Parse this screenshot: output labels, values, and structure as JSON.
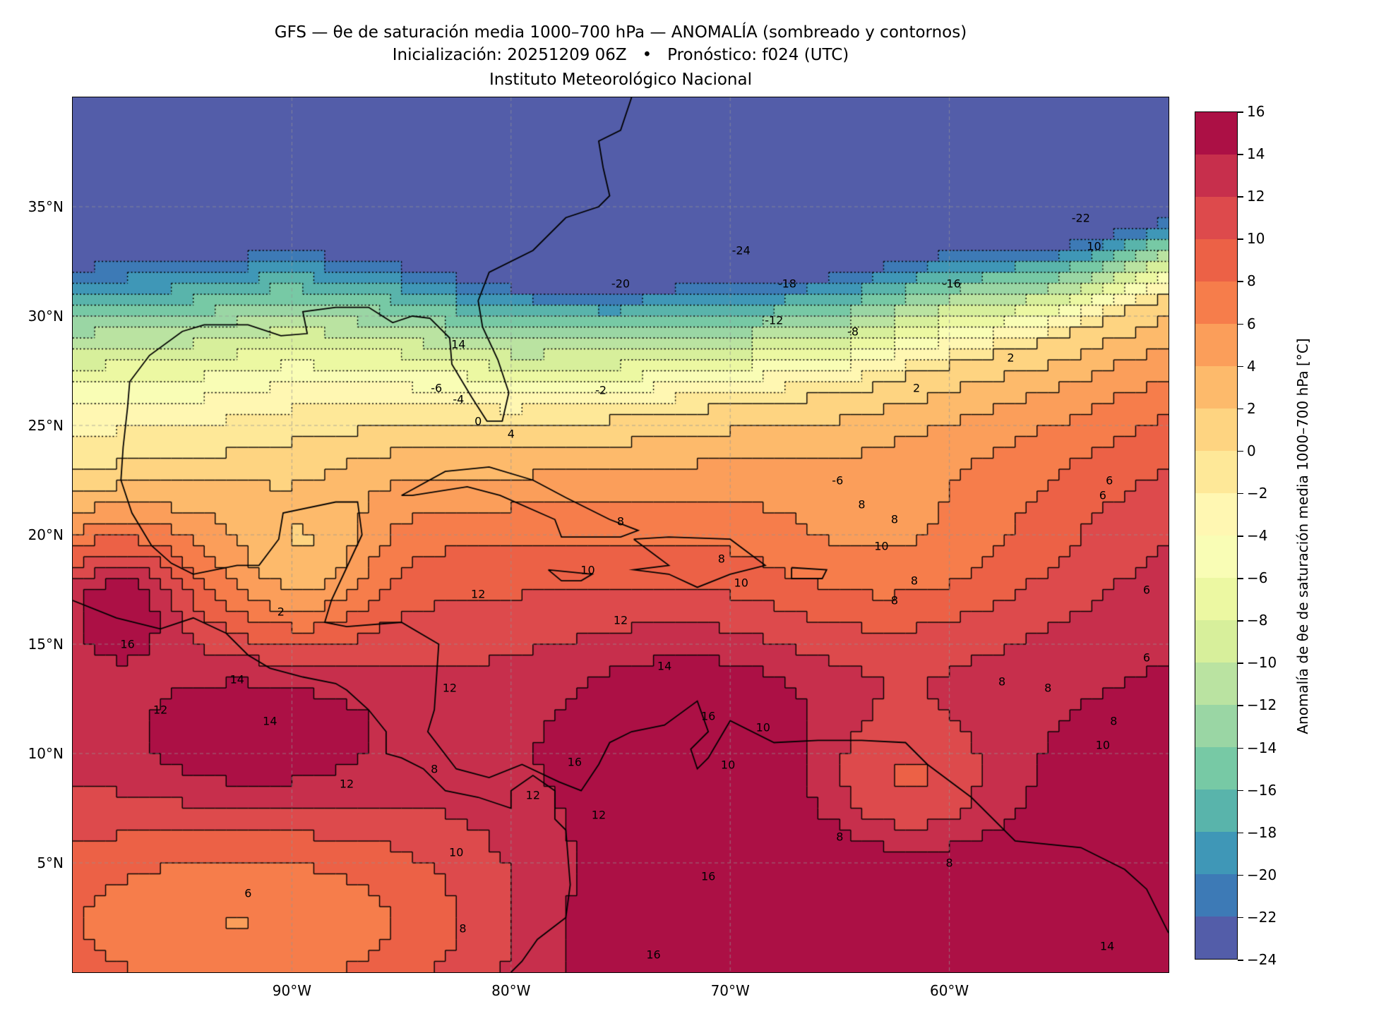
{
  "header": {
    "line1": "GFS — θe de saturación media 1000–700 hPa — ANOMALÍA (sombreado y contornos)",
    "line2": "Inicialización: 20251209 06Z   •   Pronóstico: f024 (UTC)",
    "line3": "Instituto Meteorológico Nacional"
  },
  "map": {
    "extent": {
      "lon_min": -100,
      "lon_max": -50,
      "lat_min": 0,
      "lat_max": 40
    },
    "lon_ticks": [
      {
        "value": -90,
        "label": "90°W"
      },
      {
        "value": -80,
        "label": "80°W"
      },
      {
        "value": -70,
        "label": "70°W"
      },
      {
        "value": -60,
        "label": "60°W"
      }
    ],
    "lat_ticks": [
      {
        "value": 35,
        "label": "35°N"
      },
      {
        "value": 30,
        "label": "30°N"
      },
      {
        "value": 25,
        "label": "25°N"
      },
      {
        "value": 20,
        "label": "20°N"
      },
      {
        "value": 15,
        "label": "15°N"
      },
      {
        "value": 10,
        "label": "10°N"
      },
      {
        "value": 5,
        "label": "5°N"
      }
    ],
    "contour_labels": [
      {
        "text": "-24",
        "lon": -69.5,
        "lat": 33.0
      },
      {
        "text": "-22",
        "lon": -54,
        "lat": 34.5
      },
      {
        "text": "10",
        "lon": -53.4,
        "lat": 33.2
      },
      {
        "text": "-20",
        "lon": -75,
        "lat": 31.5
      },
      {
        "text": "-18",
        "lon": -67.4,
        "lat": 31.5
      },
      {
        "text": "-16",
        "lon": -59.9,
        "lat": 31.5
      },
      {
        "text": "-12",
        "lon": -68,
        "lat": 29.8
      },
      {
        "text": "-8",
        "lon": -64.4,
        "lat": 29.3
      },
      {
        "text": "14",
        "lon": -82.4,
        "lat": 28.7
      },
      {
        "text": "2",
        "lon": -57.2,
        "lat": 28.1
      },
      {
        "text": "-6",
        "lon": -83.4,
        "lat": 26.7
      },
      {
        "text": "-4",
        "lon": -82.4,
        "lat": 26.2
      },
      {
        "text": "-2",
        "lon": -75.9,
        "lat": 26.6
      },
      {
        "text": "2",
        "lon": -61.5,
        "lat": 26.7
      },
      {
        "text": "0",
        "lon": -81.5,
        "lat": 25.2
      },
      {
        "text": "4",
        "lon": -80,
        "lat": 24.6
      },
      {
        "text": "-6",
        "lon": -65.1,
        "lat": 22.5
      },
      {
        "text": "6",
        "lon": -52.7,
        "lat": 22.5
      },
      {
        "text": "6",
        "lon": -53,
        "lat": 21.8
      },
      {
        "text": "8",
        "lon": -64,
        "lat": 21.4
      },
      {
        "text": "8",
        "lon": -62.5,
        "lat": 20.7
      },
      {
        "text": "8",
        "lon": -75,
        "lat": 20.6
      },
      {
        "text": "10",
        "lon": -63.1,
        "lat": 19.5
      },
      {
        "text": "8",
        "lon": -70.4,
        "lat": 18.9
      },
      {
        "text": "10",
        "lon": -76.5,
        "lat": 18.4
      },
      {
        "text": "12",
        "lon": -81.5,
        "lat": 17.3
      },
      {
        "text": "10",
        "lon": -69.5,
        "lat": 17.8
      },
      {
        "text": "8",
        "lon": -61.6,
        "lat": 17.9
      },
      {
        "text": "8",
        "lon": -62.5,
        "lat": 17.0
      },
      {
        "text": "6",
        "lon": -51,
        "lat": 17.5
      },
      {
        "text": "2",
        "lon": -90.5,
        "lat": 16.5
      },
      {
        "text": "12",
        "lon": -75,
        "lat": 16.1
      },
      {
        "text": "16",
        "lon": -97.5,
        "lat": 15.0
      },
      {
        "text": "14",
        "lon": -73,
        "lat": 14.0
      },
      {
        "text": "6",
        "lon": -51,
        "lat": 14.4
      },
      {
        "text": "8",
        "lon": -57.6,
        "lat": 13.3
      },
      {
        "text": "8",
        "lon": -55.5,
        "lat": 13.0
      },
      {
        "text": "12",
        "lon": -82.8,
        "lat": 13.0
      },
      {
        "text": "14",
        "lon": -92.5,
        "lat": 13.4
      },
      {
        "text": "12",
        "lon": -96,
        "lat": 12.0
      },
      {
        "text": "14",
        "lon": -91,
        "lat": 11.5
      },
      {
        "text": "16",
        "lon": -71,
        "lat": 11.7
      },
      {
        "text": "10",
        "lon": -68.5,
        "lat": 11.2
      },
      {
        "text": "8",
        "lon": -52.5,
        "lat": 11.5
      },
      {
        "text": "10",
        "lon": -53,
        "lat": 10.4
      },
      {
        "text": "16",
        "lon": -77.1,
        "lat": 9.6
      },
      {
        "text": "10",
        "lon": -70.1,
        "lat": 9.5
      },
      {
        "text": "8",
        "lon": -83.5,
        "lat": 9.3
      },
      {
        "text": "12",
        "lon": -87.5,
        "lat": 8.6
      },
      {
        "text": "12",
        "lon": -79,
        "lat": 8.1
      },
      {
        "text": "12",
        "lon": -76,
        "lat": 7.2
      },
      {
        "text": "8",
        "lon": -65,
        "lat": 6.2
      },
      {
        "text": "10",
        "lon": -82.5,
        "lat": 5.5
      },
      {
        "text": "16",
        "lon": -71,
        "lat": 4.4
      },
      {
        "text": "8",
        "lon": -60,
        "lat": 5.0
      },
      {
        "text": "6",
        "lon": -92,
        "lat": 3.6
      },
      {
        "text": "8",
        "lon": -82.2,
        "lat": 2.0
      },
      {
        "text": "16",
        "lon": -73.5,
        "lat": 0.8
      },
      {
        "text": "14",
        "lon": -52.8,
        "lat": 1.2
      }
    ]
  },
  "colorbar": {
    "label": "Anomalía de θe de saturación media 1000–700 hPa [°C]",
    "min": -24,
    "max": 16,
    "step": 2,
    "tick_labels": [
      "−24",
      "−22",
      "−20",
      "−18",
      "−16",
      "−14",
      "−12",
      "−10",
      "−8",
      "−6",
      "−4",
      "−2",
      "0",
      "2",
      "4",
      "6",
      "8",
      "10",
      "12",
      "14",
      "16"
    ],
    "colormap": [
      "#9e0142",
      "#d53e4f",
      "#f46d43",
      "#fdae61",
      "#fee08b",
      "#ffffbf",
      "#e6f598",
      "#abdda4",
      "#66c2a5",
      "#3288bd",
      "#5e4fa2"
    ]
  }
}
